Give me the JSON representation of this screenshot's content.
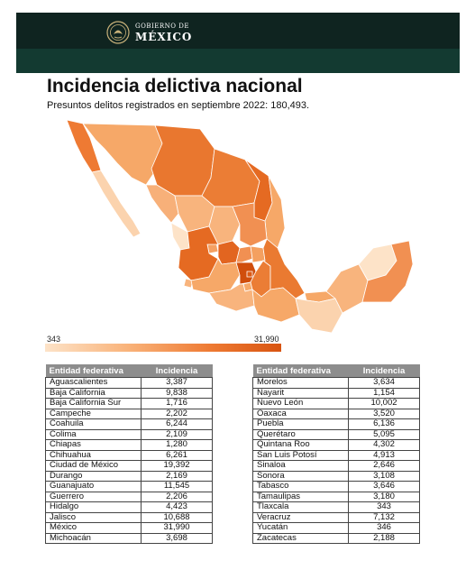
{
  "header": {
    "logo_top": "GOBIERNO DE",
    "logo_bottom": "MÉXICO",
    "emblem_icon": "coat-of-arms-icon"
  },
  "title": "Incidencia delictiva nacional",
  "subtitle": "Presuntos delitos registrados en septiembre 2022: 180,493.",
  "legend": {
    "min": "343",
    "max": "31,990",
    "colors": [
      "#fde3c8",
      "#f9b37a",
      "#ee7a33",
      "#d85410"
    ]
  },
  "table_left": {
    "headers": [
      "Entidad federativa",
      "Incidencia"
    ],
    "rows": [
      [
        "Aguascalientes",
        "3,387"
      ],
      [
        "Baja California",
        "9,838"
      ],
      [
        "Baja California Sur",
        "1,716"
      ],
      [
        "Campeche",
        "2,202"
      ],
      [
        "Coahuila",
        "6,244"
      ],
      [
        "Colima",
        "2,109"
      ],
      [
        "Chiapas",
        "1,280"
      ],
      [
        "Chihuahua",
        "6,261"
      ],
      [
        "Ciudad de México",
        "19,392"
      ],
      [
        "Durango",
        "2,169"
      ],
      [
        "Guanajuato",
        "11,545"
      ],
      [
        "Guerrero",
        "2,206"
      ],
      [
        "Hidalgo",
        "4,423"
      ],
      [
        "Jalisco",
        "10,688"
      ],
      [
        "México",
        "31,990"
      ],
      [
        "Michoacán",
        "3,698"
      ]
    ]
  },
  "table_right": {
    "headers": [
      "Entidad federativa",
      "Incidencia"
    ],
    "rows": [
      [
        "Morelos",
        "3,634"
      ],
      [
        "Nayarit",
        "1,154"
      ],
      [
        "Nuevo León",
        "10,002"
      ],
      [
        "Oaxaca",
        "3,520"
      ],
      [
        "Puebla",
        "6,136"
      ],
      [
        "Querétaro",
        "5,095"
      ],
      [
        "Quintana Roo",
        "4,302"
      ],
      [
        "San Luis Potosí",
        "4,913"
      ],
      [
        "Sinaloa",
        "2,646"
      ],
      [
        "Sonora",
        "3,108"
      ],
      [
        "Tabasco",
        "3,646"
      ],
      [
        "Tamaulipas",
        "3,180"
      ],
      [
        "Tlaxcala",
        "343"
      ],
      [
        "Veracruz",
        "7,132"
      ],
      [
        "Yucatán",
        "346"
      ],
      [
        "Zacatecas",
        "2,188"
      ]
    ]
  }
}
